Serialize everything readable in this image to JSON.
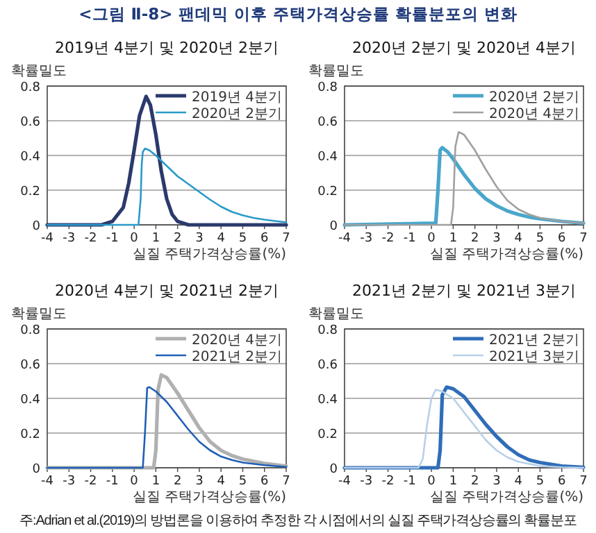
{
  "chart_data": [
    {
      "type": "line",
      "title": "2019년 4분기 및 2020년 2분기",
      "ylabel": "확률밀도",
      "xlabel": "실질 주택가격상승률(%)",
      "annotations": [
        "<그림 Ⅱ-8> 팬데믹 이후 주택가격상승률 확률분포의 변화"
      ],
      "xlim": [
        -4,
        7
      ],
      "xticks": [
        -4,
        -3,
        -2,
        -1,
        0,
        1,
        2,
        3,
        4,
        5,
        6,
        7
      ],
      "ylim": [
        0,
        0.8
      ],
      "yticks": [
        0,
        0.2,
        0.4,
        0.6,
        0.8
      ],
      "grid": "y",
      "legend": "top right",
      "line_style": "solid",
      "series": [
        {
          "name": "2019년 4분기",
          "color": "#2b3a6b",
          "x": [
            -4,
            -2,
            -1.5,
            -1,
            -0.5,
            -0.25,
            0,
            0.25,
            0.55,
            0.75,
            1,
            1.25,
            1.5,
            1.75,
            2,
            2.5,
            7
          ],
          "values": [
            0,
            0,
            0,
            0.02,
            0.1,
            0.24,
            0.43,
            0.63,
            0.74,
            0.69,
            0.52,
            0.31,
            0.15,
            0.06,
            0.02,
            0,
            0
          ]
        },
        {
          "name": "2020년 2분기",
          "color": "#2a9ac9",
          "x": [
            -4,
            0.2,
            0.3,
            0.35,
            0.4,
            0.5,
            0.7,
            1,
            1.5,
            2,
            2.5,
            3,
            3.5,
            4,
            4.5,
            5,
            5.5,
            6,
            6.5,
            7
          ],
          "values": [
            0,
            0,
            0.15,
            0.35,
            0.42,
            0.44,
            0.43,
            0.4,
            0.34,
            0.28,
            0.235,
            0.19,
            0.145,
            0.105,
            0.075,
            0.055,
            0.04,
            0.03,
            0.022,
            0.015
          ]
        }
      ]
    },
    {
      "type": "line",
      "title": "2020년 2분기 및 2020년 4분기",
      "ylabel": "확률밀도",
      "xlabel": "실질 주택가격상승률(%)",
      "xlim": [
        -4,
        7
      ],
      "xticks": [
        -4,
        -3,
        -2,
        -1,
        0,
        1,
        2,
        3,
        4,
        5,
        6,
        7
      ],
      "ylim": [
        0,
        0.8
      ],
      "yticks": [
        0,
        0.2,
        0.4,
        0.6,
        0.8
      ],
      "grid": "y",
      "legend": "top right",
      "line_style": "solid",
      "series": [
        {
          "name": "2020년 2분기",
          "color": "#4aa6cc",
          "x": [
            -4,
            0.2,
            0.3,
            0.4,
            0.5,
            0.75,
            1,
            1.5,
            2,
            2.5,
            3,
            3.5,
            4,
            4.5,
            5,
            6,
            7
          ],
          "values": [
            0,
            0.01,
            0.2,
            0.43,
            0.445,
            0.42,
            0.38,
            0.29,
            0.21,
            0.15,
            0.11,
            0.08,
            0.06,
            0.045,
            0.035,
            0.02,
            0.01
          ]
        },
        {
          "name": "2020년 4분기",
          "color": "#a0a0a0",
          "x": [
            -4,
            0.9,
            1,
            1.1,
            1.25,
            1.5,
            2,
            2.5,
            3,
            3.5,
            4,
            4.5,
            5,
            6,
            7
          ],
          "values": [
            0,
            0,
            0.1,
            0.45,
            0.535,
            0.52,
            0.43,
            0.32,
            0.22,
            0.14,
            0.09,
            0.06,
            0.04,
            0.02,
            0.01
          ]
        }
      ]
    },
    {
      "type": "line",
      "title": "2020년 4분기 및 2021년 2분기",
      "ylabel": "확률밀도",
      "xlabel": "실질 주택가격상승률(%)",
      "xlim": [
        -4,
        7
      ],
      "xticks": [
        -4,
        -3,
        -2,
        -1,
        0,
        1,
        2,
        3,
        4,
        5,
        6,
        7
      ],
      "ylim": [
        0,
        0.8
      ],
      "yticks": [
        0,
        0.2,
        0.4,
        0.6,
        0.8
      ],
      "grid": "y",
      "legend": "top right",
      "line_style": "solid",
      "series": [
        {
          "name": "2020년 4분기",
          "color": "#b0b0b0",
          "x": [
            -4,
            0.9,
            1,
            1.1,
            1.25,
            1.5,
            2,
            2.5,
            3,
            3.5,
            4,
            4.5,
            5,
            6,
            7
          ],
          "values": [
            0,
            0,
            0.1,
            0.45,
            0.535,
            0.52,
            0.43,
            0.33,
            0.23,
            0.15,
            0.1,
            0.07,
            0.05,
            0.025,
            0.01
          ]
        },
        {
          "name": "2021년 2분기",
          "color": "#1f5fb5",
          "x": [
            -4,
            0.4,
            0.5,
            0.6,
            0.7,
            1,
            1.5,
            2,
            2.5,
            3,
            3.5,
            4,
            4.5,
            5,
            6,
            7
          ],
          "values": [
            0,
            0,
            0.2,
            0.46,
            0.465,
            0.44,
            0.38,
            0.3,
            0.22,
            0.15,
            0.1,
            0.065,
            0.045,
            0.03,
            0.015,
            0.005
          ]
        }
      ]
    },
    {
      "type": "line",
      "title": "2021년 2분기 및 2021년 3분기",
      "ylabel": "확률밀도",
      "xlabel": "실질 주택가격상승률(%)",
      "annotations": [
        "주:Adrian et al.(2019)의 방법론을 이용하여 추정한 각 시점에서의 실질 주택가격상승률의 확률분포"
      ],
      "xlim": [
        -4,
        7
      ],
      "xticks": [
        -4,
        -3,
        -2,
        -1,
        0,
        1,
        2,
        3,
        4,
        5,
        6,
        7
      ],
      "ylim": [
        0,
        0.8
      ],
      "yticks": [
        0,
        0.2,
        0.4,
        0.6,
        0.8
      ],
      "grid": "y",
      "legend": "top right",
      "line_style": "solid",
      "series": [
        {
          "name": "2021년 2분기",
          "color": "#2f6db8",
          "x": [
            -4,
            0.3,
            0.4,
            0.5,
            0.7,
            1,
            1.5,
            2,
            2.5,
            3,
            3.5,
            4,
            4.5,
            5,
            6,
            7
          ],
          "values": [
            0,
            0,
            0.1,
            0.42,
            0.465,
            0.455,
            0.41,
            0.33,
            0.25,
            0.18,
            0.12,
            0.075,
            0.045,
            0.03,
            0.01,
            0.003
          ]
        },
        {
          "name": "2021년 3분기",
          "color": "#b8d0e8",
          "x": [
            -4,
            -0.6,
            -0.4,
            -0.2,
            0,
            0.2,
            0.5,
            1,
            1.5,
            2,
            2.5,
            3,
            3.5,
            4,
            5,
            6,
            7
          ],
          "values": [
            0,
            0,
            0.05,
            0.25,
            0.4,
            0.45,
            0.44,
            0.4,
            0.32,
            0.24,
            0.16,
            0.1,
            0.06,
            0.035,
            0.01,
            0.003,
            0
          ]
        }
      ]
    }
  ]
}
